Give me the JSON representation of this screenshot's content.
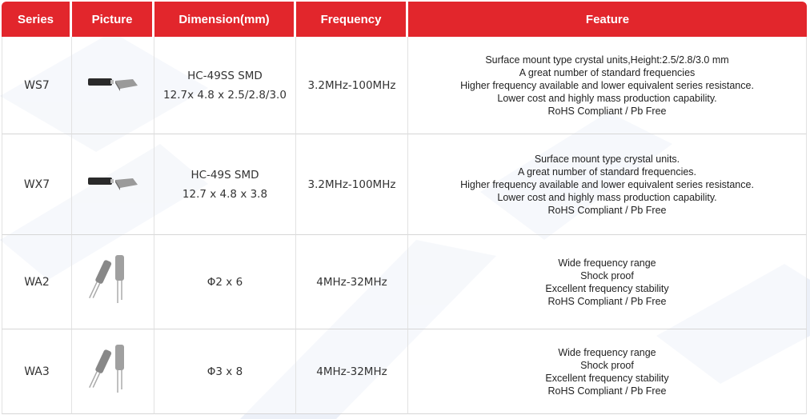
{
  "table": {
    "columns": [
      "Series",
      "Picture",
      "Dimension(mm)",
      "Frequency",
      "Feature"
    ],
    "rows": [
      {
        "series": "WS7",
        "dimension": [
          "HC-49SS SMD",
          "12.7x 4.8 x 2.5/2.8/3.0"
        ],
        "frequency": "3.2MHz-100MHz",
        "feature": [
          "Surface mount type crystal units,Height:2.5/2.8/3.0 mm",
          "A great number of standard frequencies",
          "Higher frequency available and lower equivalent series resistance.",
          "Lower cost and highly mass production capability.",
          "RoHS Compliant / Pb Free"
        ]
      },
      {
        "series": "WX7",
        "dimension": [
          "HC-49S SMD",
          "12.7 x 4.8 x 3.8"
        ],
        "frequency": "3.2MHz-100MHz",
        "feature": [
          "Surface mount type crystal units.",
          "A great number of standard frequencies.",
          "Higher frequency available and lower equivalent series resistance.",
          "Lower cost and highly mass production capability.",
          "RoHS Compliant / Pb Free"
        ]
      },
      {
        "series": "WA2",
        "dimension": [
          "Φ2 x 6"
        ],
        "frequency": "4MHz-32MHz",
        "feature": [
          "Wide frequency range",
          "Shock proof",
          "Excellent frequency stability",
          "RoHS Compliant / Pb Free"
        ]
      },
      {
        "series": "WA3",
        "dimension": [
          "Φ3 x 8"
        ],
        "frequency": "4MHz-32MHz",
        "feature": [
          "Wide frequency range",
          "Shock proof",
          "Excellent frequency stability",
          "RoHS Compliant / Pb Free"
        ]
      }
    ]
  }
}
